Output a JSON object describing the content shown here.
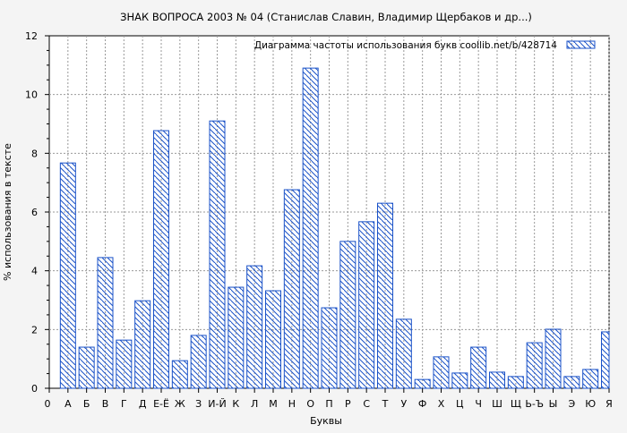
{
  "chart_data": {
    "type": "bar",
    "title": "ЗНАК ВОПРОСА 2003 № 04 (Станислав Славин, Владимир Щербаков и др...)",
    "xlabel": "Буквы",
    "ylabel": "% использования в тексте",
    "legend": {
      "label": "Диаграмма частоты использования букв  coollib.net/b/428714",
      "placement": "top-right"
    },
    "x_origin_label": "0",
    "categories": [
      "А",
      "Б",
      "В",
      "Г",
      "Д",
      "Е-Ё",
      "Ж",
      "З",
      "И-Й",
      "К",
      "Л",
      "М",
      "Н",
      "О",
      "П",
      "Р",
      "С",
      "Т",
      "У",
      "Ф",
      "Х",
      "Ц",
      "Ч",
      "Ш",
      "Щ",
      "Ь-Ъ",
      "Ы",
      "Э",
      "Ю",
      "Я"
    ],
    "values": [
      7.67,
      1.4,
      4.45,
      1.64,
      2.98,
      8.77,
      0.94,
      1.8,
      9.1,
      3.44,
      4.17,
      3.32,
      6.76,
      10.9,
      2.74,
      5.0,
      5.67,
      6.3,
      2.35,
      0.3,
      1.07,
      0.52,
      1.4,
      0.55,
      0.4,
      1.55,
      2.01,
      0.4,
      0.64,
      1.92
    ],
    "ylim": [
      0,
      12
    ],
    "yticks": [
      0,
      2,
      4,
      6,
      8,
      10,
      12
    ],
    "grid": true,
    "colors": {
      "bar": "#1a52c8",
      "grid": "#999999",
      "background": "#f4f4f4",
      "plot": "#ffffff"
    }
  }
}
